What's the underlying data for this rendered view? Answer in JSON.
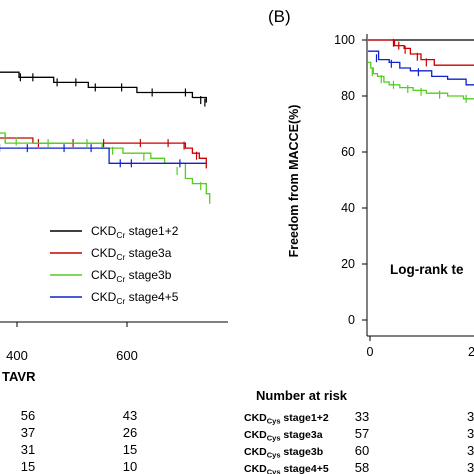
{
  "panel_b_label": "(B)",
  "chart_data": [
    {
      "type": "line",
      "title": "",
      "xlabel": "TAVR",
      "ylabel": "",
      "x_ticks": [
        400,
        600
      ],
      "xlim": [
        290,
        760
      ],
      "ylim": [
        50,
        100
      ],
      "grid": false,
      "legend_position": "lower-center",
      "series": [
        {
          "name": "CKDCr stage1+2",
          "name_main": "CKD",
          "name_sub": "Cr",
          "name_tail": " stage1+2",
          "color": "#000000",
          "points": [
            [
              290,
              99
            ],
            [
              330,
              99
            ],
            [
              350,
              98
            ],
            [
              380,
              97
            ],
            [
              400,
              96
            ],
            [
              430,
              96
            ],
            [
              450,
              95
            ],
            [
              480,
              95
            ],
            [
              500,
              94
            ],
            [
              520,
              94
            ],
            [
              550,
              93
            ],
            [
              580,
              93
            ],
            [
              620,
              92
            ],
            [
              660,
              92
            ],
            [
              700,
              91
            ],
            [
              720,
              90
            ]
          ],
          "censors": [
            [
              345,
              98.5
            ],
            [
              372,
              97.2
            ],
            [
              406,
              95.8
            ],
            [
              420,
              95.8
            ],
            [
              452,
              95
            ],
            [
              470,
              95
            ],
            [
              505,
              94
            ],
            [
              532,
              94
            ],
            [
              560,
              93
            ],
            [
              598,
              93
            ],
            [
              642,
              92
            ],
            [
              690,
              92
            ],
            [
              712,
              90.5
            ],
            [
              718,
              90
            ]
          ]
        },
        {
          "name": "CKDCr stage3a",
          "name_main": "CKD",
          "name_sub": "Cr",
          "name_tail": " stage3a",
          "color": "#cc0000",
          "points": [
            [
              290,
              86
            ],
            [
              310,
              85
            ],
            [
              330,
              84
            ],
            [
              360,
              84
            ],
            [
              380,
              83
            ],
            [
              420,
              83
            ],
            [
              470,
              82
            ],
            [
              520,
              82
            ],
            [
              570,
              82
            ],
            [
              620,
              82
            ],
            [
              680,
              82
            ],
            [
              690,
              81
            ],
            [
              700,
              80
            ],
            [
              710,
              79
            ],
            [
              720,
              77
            ]
          ],
          "censors": [
            [
              322,
              84.5
            ],
            [
              352,
              84
            ],
            [
              390,
              83
            ],
            [
              430,
              83
            ],
            [
              478,
              82
            ],
            [
              528,
              82
            ],
            [
              572,
              82
            ],
            [
              625,
              82
            ],
            [
              665,
              82
            ],
            [
              688,
              81.5
            ],
            [
              706,
              79.5
            ]
          ]
        },
        {
          "name": "CKDCr stage3b",
          "name_main": "CKD",
          "name_sub": "Cr",
          "name_tail": " stage3b",
          "color": "#55cc22",
          "points": [
            [
              290,
              88
            ],
            [
              300,
              87
            ],
            [
              310,
              86
            ],
            [
              330,
              85
            ],
            [
              350,
              85
            ],
            [
              360,
              84
            ],
            [
              390,
              84
            ],
            [
              430,
              82
            ],
            [
              470,
              82
            ],
            [
              510,
              82
            ],
            [
              540,
              82
            ],
            [
              570,
              81
            ],
            [
              600,
              80
            ],
            [
              640,
              79
            ],
            [
              660,
              78
            ],
            [
              690,
              75
            ],
            [
              700,
              74
            ],
            [
              720,
              72
            ],
            [
              725,
              70
            ]
          ],
          "censors": [
            [
              304,
              86.5
            ],
            [
              336,
              85
            ],
            [
              362,
              84.3
            ],
            [
              412,
              83
            ],
            [
              446,
              82.3
            ],
            [
              492,
              82
            ],
            [
              548,
              82
            ],
            [
              585,
              80.5
            ],
            [
              630,
              79.3
            ],
            [
              678,
              76.5
            ],
            [
              712,
              73.5
            ]
          ]
        },
        {
          "name": "CKDCr stage4+5",
          "name_main": "CKD",
          "name_sub": "Cr",
          "name_tail": " stage4+5",
          "color": "#1122cc",
          "points": [
            [
              290,
              81
            ],
            [
              370,
              81
            ],
            [
              450,
              81
            ],
            [
              530,
              81
            ],
            [
              560,
              81
            ],
            [
              580,
              78
            ],
            [
              640,
              78
            ],
            [
              700,
              78
            ],
            [
              720,
              78
            ]
          ],
          "censors": [
            [
              318,
              81
            ],
            [
              338,
              81
            ],
            [
              376,
              81
            ],
            [
              422,
              81
            ],
            [
              462,
              81
            ],
            [
              515,
              81
            ],
            [
              554,
              81
            ],
            [
              596,
              78
            ],
            [
              612,
              78
            ],
            [
              682,
              78
            ]
          ]
        }
      ],
      "risk_table": {
        "title": "",
        "columns": [
          400,
          600
        ],
        "rows": [
          [
            56,
            43
          ],
          [
            37,
            26
          ],
          [
            31,
            15
          ],
          [
            15,
            10
          ]
        ]
      }
    },
    {
      "type": "line",
      "title": "",
      "xlabel": "",
      "ylabel": "Freedom from MACCE(%)",
      "y_ticks": [
        0,
        20,
        40,
        60,
        80,
        100
      ],
      "x_ticks": [
        "0",
        "2"
      ],
      "xlim": [
        0,
        230
      ],
      "ylim": [
        0,
        100
      ],
      "grid": false,
      "annotation": "Log-rank te",
      "series": [
        {
          "name": "CKDCys stage1+2",
          "name_main": "CKD",
          "name_sub": "Cys",
          "name_tail": " stage1+2",
          "color": "#000000",
          "points": [
            [
              0,
              100
            ],
            [
              230,
              100
            ]
          ],
          "censors": []
        },
        {
          "name": "CKDCys stage3a",
          "name_main": "CKD",
          "name_sub": "Cys",
          "name_tail": " stage3a",
          "color": "#cc0000",
          "points": [
            [
              0,
              100
            ],
            [
              45,
              100
            ],
            [
              50,
              98
            ],
            [
              68,
              97
            ],
            [
              80,
              95
            ],
            [
              100,
              93
            ],
            [
              125,
              91
            ],
            [
              230,
              91
            ]
          ],
          "censors": [
            [
              48,
              99
            ],
            [
              58,
              98
            ],
            [
              70,
              96.5
            ],
            [
              93,
              94
            ],
            [
              110,
              92
            ]
          ]
        },
        {
          "name": "CKDCys stage3b",
          "name_main": "CKD",
          "name_sub": "Cys",
          "name_tail": " stage3b",
          "color": "#55cc22",
          "points": [
            [
              0,
              92
            ],
            [
              5,
              90
            ],
            [
              10,
              88
            ],
            [
              18,
              87
            ],
            [
              30,
              85
            ],
            [
              40,
              84
            ],
            [
              60,
              83
            ],
            [
              85,
              82
            ],
            [
              110,
              81
            ],
            [
              150,
              80
            ],
            [
              180,
              79
            ],
            [
              230,
              79
            ]
          ],
          "censors": [
            [
              8,
              88.5
            ],
            [
              25,
              86
            ],
            [
              48,
              84
            ],
            [
              75,
              82.5
            ],
            [
              100,
              81.5
            ],
            [
              135,
              80.5
            ],
            [
              185,
              79
            ]
          ]
        },
        {
          "name": "CKDCys stage4+5",
          "name_main": "CKD",
          "name_sub": "Cys",
          "name_tail": " stage4+5",
          "color": "#1122cc",
          "points": [
            [
              0,
              96
            ],
            [
              20,
              93
            ],
            [
              40,
              92
            ],
            [
              60,
              90
            ],
            [
              80,
              89
            ],
            [
              120,
              87
            ],
            [
              150,
              86
            ],
            [
              185,
              84
            ],
            [
              230,
              84
            ]
          ],
          "censors": [
            [
              16,
              93.5
            ],
            [
              44,
              91.5
            ],
            [
              95,
              88.5
            ]
          ]
        }
      ],
      "risk_table": {
        "title": "Number at risk",
        "columns": [
          "0",
          "2"
        ],
        "rows": [
          {
            "label_main": "CKD",
            "label_sub": "Cys",
            "label_tail": " stage1+2",
            "values": [
              "33",
              "3"
            ]
          },
          {
            "label_main": "CKD",
            "label_sub": "Cys",
            "label_tail": " stage3a",
            "values": [
              "57",
              "3"
            ]
          },
          {
            "label_main": "CKD",
            "label_sub": "Cys",
            "label_tail": " stage3b",
            "values": [
              "60",
              "3"
            ]
          },
          {
            "label_main": "CKD",
            "label_sub": "Cys",
            "label_tail": " stage4+5",
            "values": [
              "58",
              "3"
            ]
          }
        ]
      }
    }
  ]
}
